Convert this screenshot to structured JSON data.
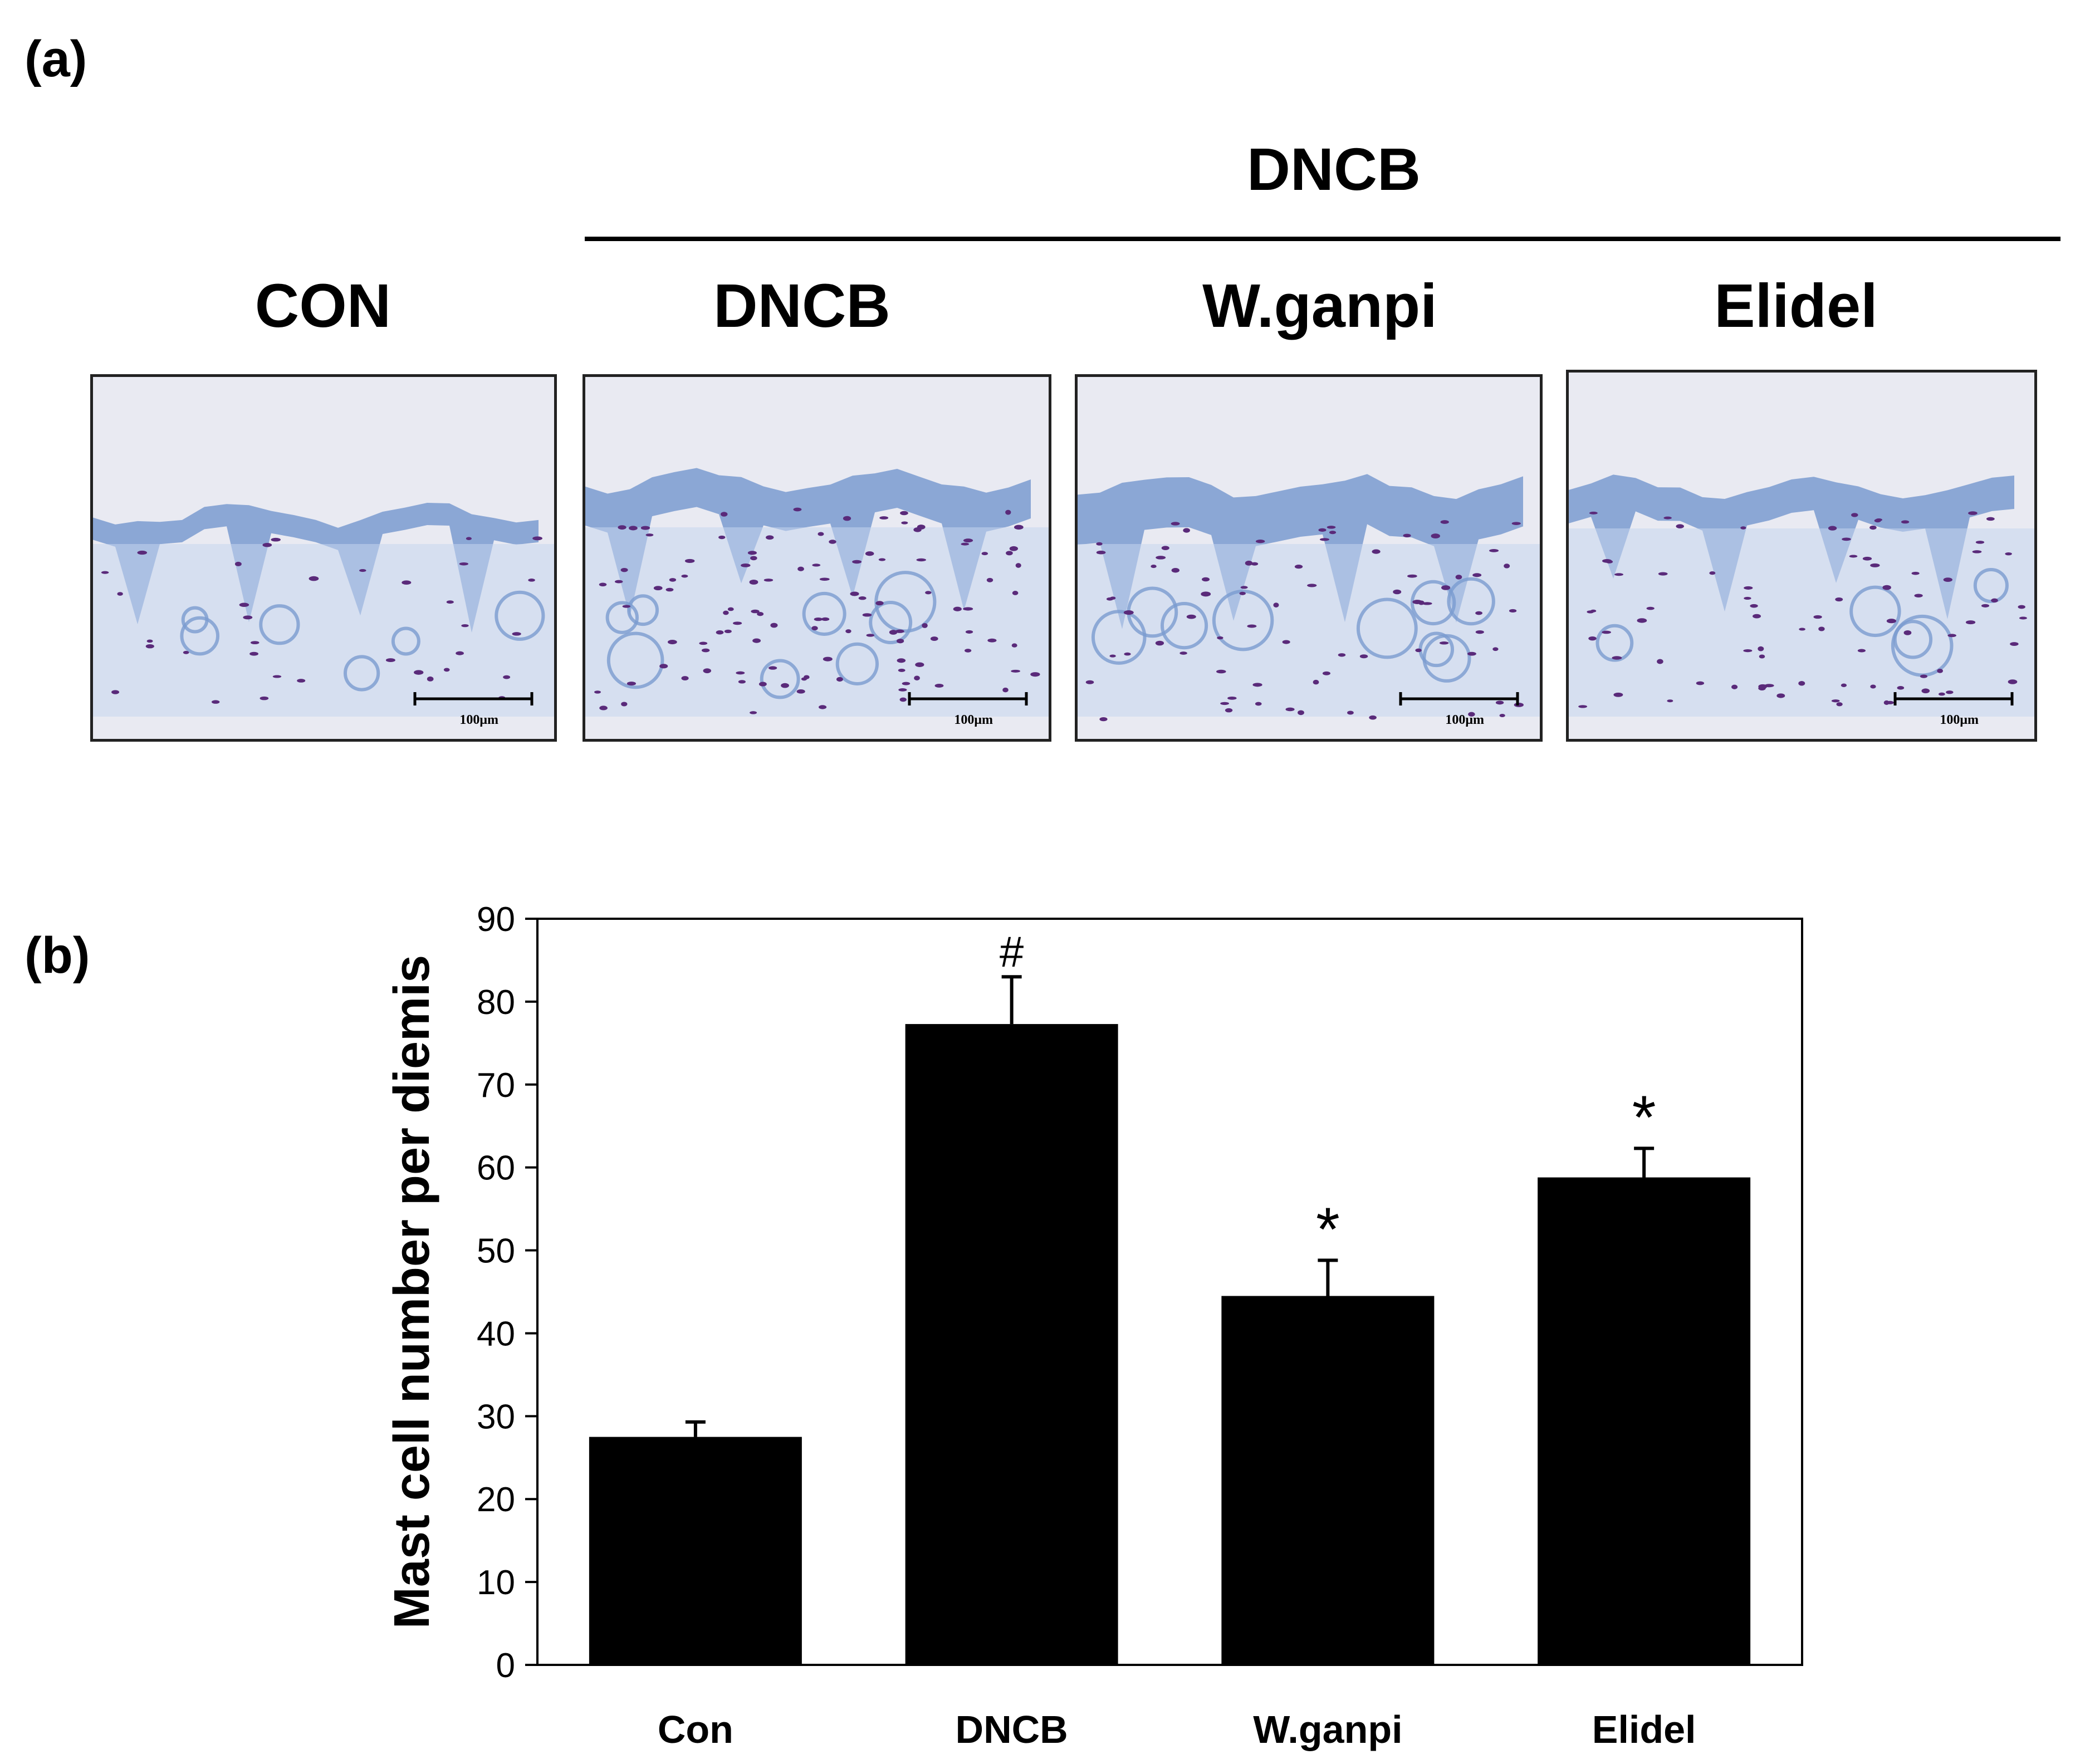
{
  "panel_a": {
    "label": "(a)",
    "group_header": "DNCB",
    "images": [
      {
        "title": "CON",
        "scale_bar": "100μm",
        "stain": "toluidine-blue"
      },
      {
        "title": "DNCB",
        "scale_bar": "100μm",
        "stain": "toluidine-blue"
      },
      {
        "title": "W.ganpi",
        "scale_bar": "100μm",
        "stain": "toluidine-blue"
      },
      {
        "title": "Elidel",
        "scale_bar": "100μm",
        "stain": "toluidine-blue"
      }
    ],
    "colors": {
      "background": "#e9eaf2",
      "epidermis": "#7a9bd0",
      "dermis": "#c7d6ee",
      "mast_cell": "#5a2a7a"
    }
  },
  "panel_b": {
    "label": "(b)"
  },
  "chart_data": {
    "type": "bar",
    "categories": [
      "Con",
      "DNCB",
      "W.ganpi",
      "Elidel"
    ],
    "values": [
      27.5,
      77.3,
      44.5,
      58.8
    ],
    "errors": [
      1.8,
      5.7,
      4.3,
      3.5
    ],
    "annotations": [
      "",
      "#",
      "*",
      "*"
    ],
    "title": "",
    "xlabel": "",
    "ylabel": "Mast cell number per diemis",
    "ylim": [
      0,
      90
    ],
    "yticks": [
      0,
      10,
      20,
      30,
      40,
      50,
      60,
      70,
      80,
      90
    ],
    "grid": false,
    "legend": "none",
    "bar_color": "#000000"
  }
}
